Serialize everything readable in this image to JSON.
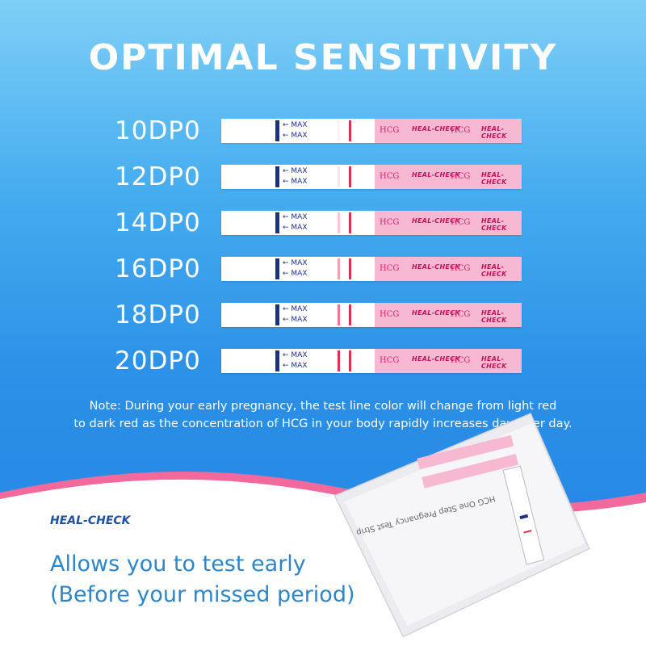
{
  "title": "OPTIMAL SENSITIVITY",
  "strip": {
    "max_label": "MAX",
    "hcg_label": "HCG",
    "brand_label": "HEAL-CHECK"
  },
  "rows": [
    {
      "label": "10DP0",
      "test_line_intensity": 0.0
    },
    {
      "label": "12DP0",
      "test_line_intensity": 0.12
    },
    {
      "label": "14DP0",
      "test_line_intensity": 0.25
    },
    {
      "label": "16DP0",
      "test_line_intensity": 0.45
    },
    {
      "label": "18DP0",
      "test_line_intensity": 0.65
    },
    {
      "label": "20DP0",
      "test_line_intensity": 1.0
    }
  ],
  "note": {
    "line1": "Note: During your early pregnancy, the test line color will change from light red",
    "line2": "to dark red as the concentration of HCG in your body rapidly increases day after day."
  },
  "logo": "HEAL-CHECK",
  "tagline": {
    "line1": "Allows you to test early",
    "line2": "(Before your missed period)"
  },
  "colors": {
    "background_blue": "#2a8fe7",
    "accent_pink": "#f26a9b",
    "test_line_red": "#e0304e",
    "tagline_blue": "#2e86c9"
  }
}
